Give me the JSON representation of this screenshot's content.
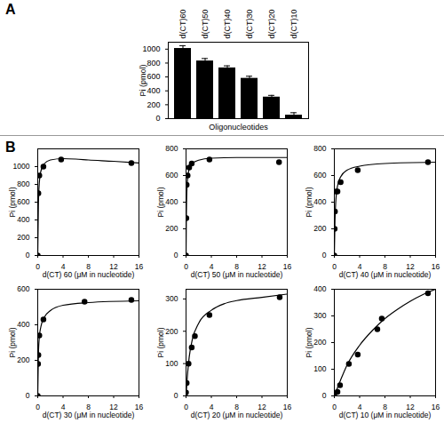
{
  "chart_data": [
    {
      "type": "bar",
      "annotations": [
        "A"
      ],
      "categories": [
        "d(CT)60",
        "d(CT)50",
        "d(CT)40",
        "d(CT)30",
        "d(CT)20",
        "d(CT)10"
      ],
      "values": [
        1010,
        830,
        730,
        580,
        310,
        50
      ],
      "errors": [
        40,
        35,
        30,
        30,
        25,
        35
      ],
      "color": "#000000",
      "x_label": "Oligonucleotides",
      "y_label": "Pi (pmol)",
      "ylim": [
        0,
        1100
      ],
      "yticks": [
        0,
        200,
        400,
        600,
        800,
        1000
      ]
    },
    {
      "type": "scatter",
      "annotations": [
        "B"
      ],
      "x_label": "d(CT) 60 (μM in nucleotide)",
      "y_label": "Pi (pmol)",
      "xlim": [
        0,
        16
      ],
      "xticks": [
        0,
        4,
        8,
        12,
        16
      ],
      "ylim": [
        0,
        1200
      ],
      "yticks": [
        0,
        200,
        400,
        600,
        800,
        1000
      ],
      "series": [
        {
          "type": "line",
          "color": "#000000",
          "line_style": "solid",
          "x": [
            0,
            0.1,
            0.25,
            0.5,
            1,
            2,
            4,
            6,
            8,
            12,
            16
          ],
          "values": [
            0,
            560,
            820,
            950,
            1030,
            1075,
            1090,
            1085,
            1075,
            1060,
            1040
          ]
        },
        {
          "type": "scatter",
          "color": "#000000",
          "marker": "circle",
          "x": [
            0,
            0.1,
            0.25,
            0.9,
            3.7,
            14.8
          ],
          "values": [
            0,
            700,
            900,
            1000,
            1080,
            1040
          ]
        }
      ]
    },
    {
      "type": "scatter",
      "x_label": "d(CT) 50 (μM in nucleotide)",
      "y_label": "Pi (pmol)",
      "xlim": [
        0,
        16
      ],
      "xticks": [
        0,
        4,
        8,
        12,
        16
      ],
      "ylim": [
        0,
        800
      ],
      "yticks": [
        0,
        200,
        400,
        600,
        800
      ],
      "series": [
        {
          "type": "line",
          "color": "#000000",
          "line_style": "solid",
          "x": [
            0,
            0.05,
            0.1,
            0.25,
            0.5,
            1,
            2,
            4,
            8,
            16
          ],
          "values": [
            0,
            300,
            440,
            580,
            650,
            690,
            715,
            730,
            735,
            735
          ]
        },
        {
          "type": "scatter",
          "color": "#000000",
          "marker": "circle",
          "x": [
            0,
            0.05,
            0.1,
            0.25,
            0.5,
            0.9,
            3.7,
            14.7
          ],
          "values": [
            0,
            280,
            530,
            600,
            660,
            690,
            720,
            700
          ]
        }
      ]
    },
    {
      "type": "scatter",
      "x_label": "d(CT) 40 (μM in nucleotide)",
      "y_label": "Pi (pmol)",
      "xlim": [
        0,
        16
      ],
      "xticks": [
        0,
        4,
        8,
        12,
        16
      ],
      "ylim": [
        0,
        800
      ],
      "yticks": [
        0,
        200,
        400,
        600,
        800
      ],
      "series": [
        {
          "type": "line",
          "color": "#000000",
          "line_style": "solid",
          "x": [
            0,
            0.1,
            0.25,
            0.5,
            1,
            2,
            4,
            8,
            16
          ],
          "values": [
            0,
            260,
            420,
            520,
            590,
            640,
            670,
            690,
            700
          ]
        },
        {
          "type": "scatter",
          "color": "#000000",
          "marker": "circle",
          "x": [
            0,
            0.05,
            0.1,
            0.25,
            0.5,
            1,
            3.7,
            14.8
          ],
          "values": [
            0,
            200,
            330,
            480,
            480,
            550,
            640,
            700
          ]
        }
      ]
    },
    {
      "type": "scatter",
      "x_label": "d(CT) 30 (μM in nucleotide)",
      "y_label": "Pi (pmol)",
      "xlim": [
        0,
        16
      ],
      "xticks": [
        0,
        4,
        8,
        12,
        16
      ],
      "ylim": [
        0,
        600
      ],
      "yticks": [
        0,
        200,
        400,
        600
      ],
      "series": [
        {
          "type": "line",
          "color": "#000000",
          "line_style": "solid",
          "x": [
            0,
            0.1,
            0.25,
            0.5,
            1,
            2,
            4,
            8,
            16
          ],
          "values": [
            0,
            230,
            330,
            390,
            440,
            480,
            510,
            525,
            535
          ]
        },
        {
          "type": "scatter",
          "color": "#000000",
          "marker": "circle",
          "x": [
            0,
            0.05,
            0.1,
            0.25,
            0.9,
            7.4,
            14.8
          ],
          "values": [
            0,
            180,
            230,
            340,
            430,
            530,
            540
          ]
        }
      ]
    },
    {
      "type": "scatter",
      "x_label": "d(CT) 20 (μM in nucleotide)",
      "y_label": "Pi (pmol)",
      "xlim": [
        0,
        16
      ],
      "xticks": [
        0,
        4,
        8,
        12,
        16
      ],
      "ylim": [
        0,
        330
      ],
      "yticks": [
        0,
        100,
        200,
        300
      ],
      "series": [
        {
          "type": "line",
          "color": "#000000",
          "line_style": "solid",
          "x": [
            0,
            0.25,
            0.5,
            1,
            2,
            4,
            6,
            8,
            12,
            16
          ],
          "values": [
            0,
            70,
            120,
            175,
            225,
            265,
            285,
            295,
            305,
            315
          ]
        },
        {
          "type": "scatter",
          "color": "#000000",
          "marker": "circle",
          "x": [
            0,
            0.1,
            0.4,
            0.9,
            1.4,
            3.7,
            14.8
          ],
          "values": [
            10,
            40,
            100,
            150,
            185,
            250,
            305
          ]
        }
      ]
    },
    {
      "type": "scatter",
      "x_label": "d(CT) 10 (μM in nucleotide)",
      "y_label": "Pi (pmol)",
      "xlim": [
        0,
        16
      ],
      "xticks": [
        0,
        4,
        8,
        12,
        16
      ],
      "ylim": [
        0,
        400
      ],
      "yticks": [
        0,
        100,
        200,
        300,
        400
      ],
      "series": [
        {
          "type": "line",
          "color": "#000000",
          "line_style": "solid",
          "x": [
            0,
            1,
            2,
            4,
            6,
            8,
            10,
            12,
            14,
            16
          ],
          "values": [
            0,
            60,
            115,
            190,
            245,
            290,
            325,
            355,
            380,
            400
          ]
        },
        {
          "type": "scatter",
          "color": "#000000",
          "marker": "circle",
          "x": [
            0,
            0.5,
            0.9,
            2.3,
            3.7,
            6.8,
            7.5,
            14.8
          ],
          "values": [
            0,
            15,
            40,
            120,
            155,
            250,
            290,
            385
          ]
        }
      ]
    }
  ]
}
